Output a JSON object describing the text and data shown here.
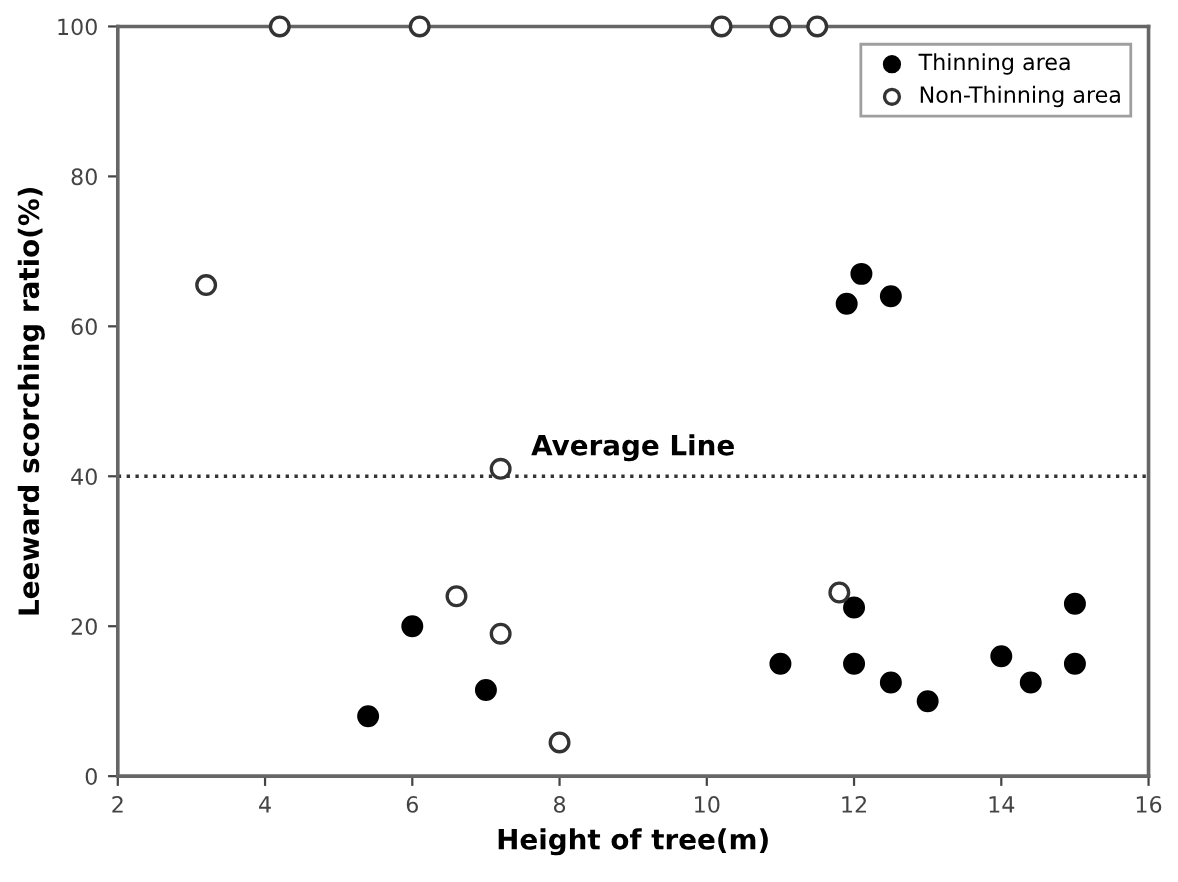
{
  "chart_data": {
    "type": "scatter",
    "xlabel": "Height of tree(m)",
    "ylabel": "Leeward scorching ratio(%)",
    "xlim": [
      2,
      16
    ],
    "ylim": [
      0,
      100
    ],
    "xticks": [
      2,
      4,
      6,
      8,
      10,
      12,
      14,
      16
    ],
    "yticks": [
      0,
      20,
      40,
      60,
      80,
      100
    ],
    "grid": false,
    "legend": "top right",
    "marker": "circle",
    "series": [
      {
        "name": "Thinning area",
        "color": "#000000",
        "x": [
          5.4,
          6,
          7,
          11,
          11.9,
          12.1,
          12.5,
          12,
          12,
          12.5,
          13,
          14,
          14.4,
          15,
          15
        ],
        "values": [
          8,
          20,
          11.5,
          15,
          63,
          67,
          64,
          22.5,
          15,
          12.5,
          10,
          16,
          12.5,
          23,
          15
        ]
      },
      {
        "name": "Non-Thinning area",
        "color": "#333333",
        "x": [
          3.2,
          4.2,
          6.1,
          10.2,
          11,
          11.5,
          6.6,
          7.2,
          7.2,
          8,
          11.8
        ],
        "values": [
          65.5,
          100,
          100,
          100,
          100,
          100,
          24,
          19,
          41,
          4.5,
          24.5
        ]
      }
    ],
    "ref_lines": [
      {
        "axis": "y",
        "value": 40,
        "label": "Average Line",
        "line_style": "dotted"
      }
    ]
  }
}
